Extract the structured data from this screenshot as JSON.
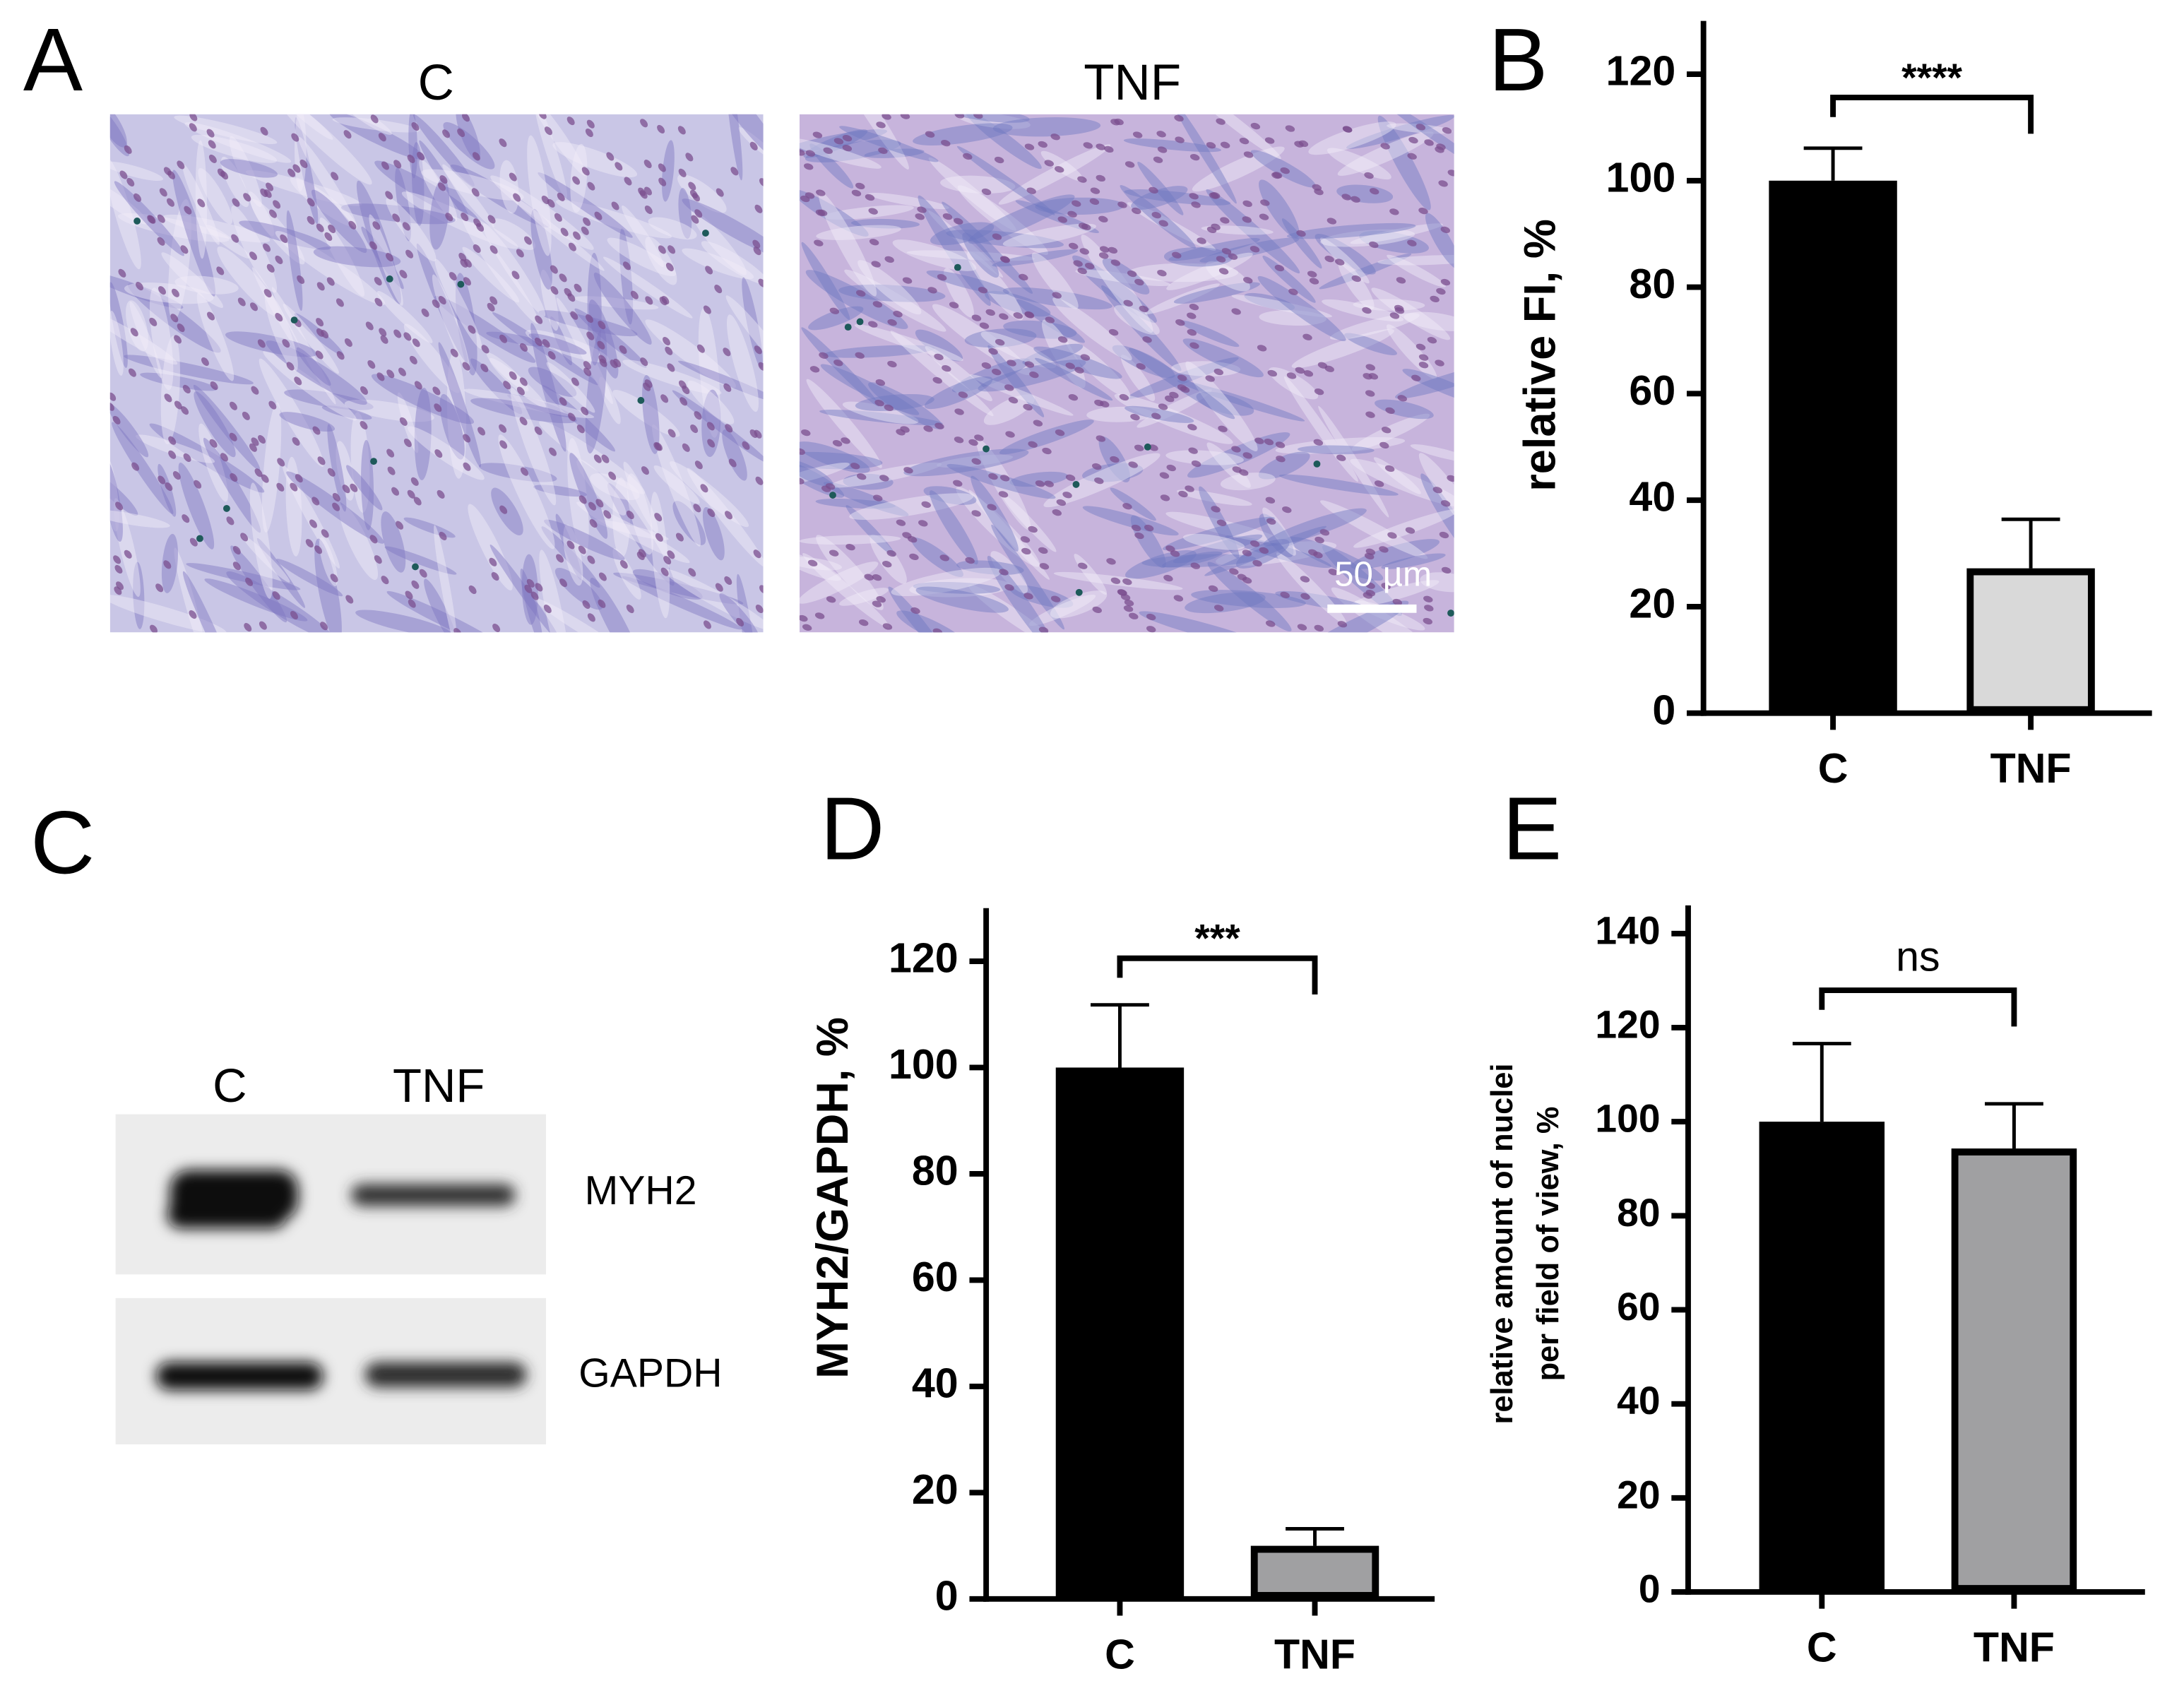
{
  "panel_labels": [
    "A",
    "B",
    "C",
    "D",
    "E"
  ],
  "micrographs": {
    "conditions": [
      "C",
      "TNF"
    ],
    "scale_bar": "50 µm"
  },
  "blot": {
    "lanes": [
      "C",
      "TNF"
    ],
    "proteins": [
      "MYH2",
      "GAPDH"
    ]
  },
  "chart_data": [
    {
      "type": "bar",
      "y_label": "relative FI, %",
      "categories": [
        "C",
        "TNF"
      ],
      "values": [
        100,
        27.2
      ],
      "errors": [
        6.1,
        9.2
      ],
      "colors": [
        "#000000",
        "#d9d9d9"
      ],
      "ylim": [
        0,
        130
      ],
      "yticks": [
        0,
        20,
        40,
        60,
        80,
        100,
        120
      ],
      "significance": "****"
    },
    {
      "type": "bar",
      "y_label": "MYH2/GAPDH, %",
      "categories": [
        "C",
        "TNF"
      ],
      "values": [
        100,
        10
      ],
      "errors": [
        11.8,
        3.2
      ],
      "colors": [
        "#000000",
        "#a0a0a2"
      ],
      "ylim": [
        0,
        130
      ],
      "yticks": [
        0,
        20,
        40,
        60,
        80,
        100,
        120
      ],
      "significance": "***"
    },
    {
      "type": "bar",
      "y_label": [
        "relative amount of nuclei",
        "per field of view, %"
      ],
      "categories": [
        "C",
        "TNF"
      ],
      "values": [
        100,
        94.3
      ],
      "errors": [
        16.6,
        9.5
      ],
      "colors": [
        "#000000",
        "#a0a0a2"
      ],
      "ylim": [
        0,
        146
      ],
      "yticks": [
        0,
        20,
        40,
        60,
        80,
        100,
        120,
        140
      ],
      "significance": "ns"
    }
  ]
}
